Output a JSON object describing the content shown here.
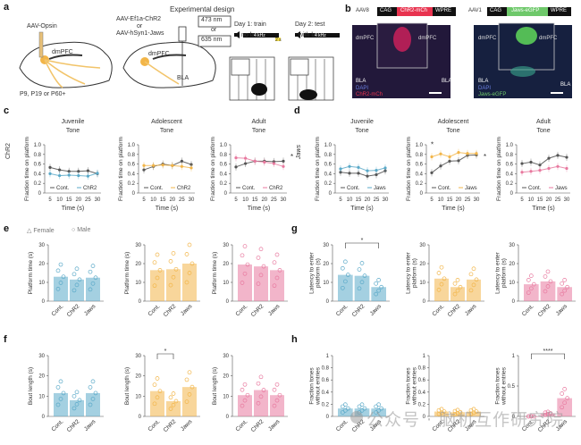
{
  "panel_labels": [
    "a",
    "b",
    "c",
    "d",
    "e",
    "f",
    "g",
    "h"
  ],
  "panel_a": {
    "title": "Experimental design",
    "injection_label": "AAV-Opsin",
    "region1": "dmPFC",
    "ages": "P9, P19 or P60+",
    "virus1": "AAV-Ef1a-ChR2",
    "or": "or",
    "virus2": "AAV-hSyn1-Jaws",
    "laser1": "473 nm",
    "laser2": "635 nm",
    "region2": "dmPFC",
    "region3": "BLA",
    "day1_title": "Day 1: train",
    "day1_sub": "no laser",
    "day2_title": "Day 2: test",
    "day2_sub": "with laser",
    "tone": "4 kHz",
    "shock": "2 s"
  },
  "panel_b": {
    "construct1": {
      "virus": "AAV8",
      "promoter": "CAG",
      "gene": "ChR2-mCh",
      "wpre": "WPRE"
    },
    "construct2": {
      "virus": "AAV1",
      "promoter": "CAG",
      "gene": "Jaws-eGFP",
      "wpre": "WPRE"
    },
    "left_labels": {
      "pfc_l": "dmPFC",
      "pfc_r": "dmPFC",
      "bla_l": "BLA",
      "bla_r": "BLA",
      "dapi": "DAPI",
      "marker": "ChR2-mCh"
    },
    "right_labels": {
      "pfc_l": "dmPFC",
      "pfc_r": "dmPFC",
      "bla_l": "BLA",
      "bla_r": "BLA",
      "dapi": "DAPI",
      "marker": "Jaws-eGFP"
    }
  },
  "colors": {
    "juvenile": "#5aa9c8",
    "adolescent": "#f2b548",
    "adult": "#e8799f",
    "control": "#555555",
    "chr2_title": "#333333"
  },
  "row_labels": {
    "c": "ChR2",
    "d": "Jaws"
  },
  "legend_e": {
    "female": "Female",
    "male": "Male"
  },
  "watermark": "公众号 · 脑机互作研究院",
  "chart_data": [
    {
      "id": "c1",
      "type": "line",
      "title": "Juvenile\nTone",
      "xlabel": "Time (s)",
      "ylabel": "Fraction time on platform",
      "x": [
        5,
        10,
        15,
        20,
        25,
        30
      ],
      "ylim": [
        0,
        1
      ],
      "yticks": [
        0,
        0.2,
        0.4,
        0.6,
        0.8,
        1.0
      ],
      "color": "juvenile",
      "series": [
        {
          "name": "Cont.",
          "values": [
            0.53,
            0.48,
            0.45,
            0.45,
            0.46,
            0.4
          ]
        },
        {
          "name": "ChR2",
          "values": [
            0.4,
            0.36,
            0.37,
            0.36,
            0.35,
            0.41
          ]
        }
      ],
      "sig": ""
    },
    {
      "id": "c2",
      "type": "line",
      "title": "Adolescent\nTone",
      "xlabel": "Time (s)",
      "ylabel": "Fraction time on platform",
      "x": [
        5,
        10,
        15,
        20,
        25,
        30
      ],
      "ylim": [
        0,
        1
      ],
      "yticks": [
        0,
        0.2,
        0.4,
        0.6,
        0.8,
        1.0
      ],
      "color": "adolescent",
      "series": [
        {
          "name": "Cont.",
          "values": [
            0.48,
            0.55,
            0.6,
            0.57,
            0.66,
            0.59
          ]
        },
        {
          "name": "ChR2",
          "values": [
            0.57,
            0.57,
            0.58,
            0.57,
            0.55,
            0.52
          ]
        }
      ],
      "sig": ""
    },
    {
      "id": "c3",
      "type": "line",
      "title": "Adult\nTone",
      "xlabel": "Time (s)",
      "ylabel": "Fraction time on platform",
      "x": [
        5,
        10,
        15,
        20,
        25,
        30
      ],
      "ylim": [
        0,
        1
      ],
      "yticks": [
        0,
        0.2,
        0.4,
        0.6,
        0.8,
        1.0
      ],
      "color": "adult",
      "series": [
        {
          "name": "Cont.",
          "values": [
            0.54,
            0.61,
            0.66,
            0.66,
            0.65,
            0.66
          ]
        },
        {
          "name": "ChR2",
          "values": [
            0.73,
            0.72,
            0.66,
            0.64,
            0.61,
            0.55
          ]
        }
      ],
      "sig": "*"
    },
    {
      "id": "d1",
      "type": "line",
      "title": "Juvenile\nTone",
      "xlabel": "Time (s)",
      "ylabel": "Fraction time on platform",
      "x": [
        5,
        10,
        15,
        20,
        25,
        30
      ],
      "ylim": [
        0,
        1
      ],
      "yticks": [
        0,
        0.2,
        0.4,
        0.6,
        0.8,
        1.0
      ],
      "color": "juvenile",
      "series": [
        {
          "name": "Cont.",
          "values": [
            0.43,
            0.41,
            0.41,
            0.35,
            0.38,
            0.46
          ]
        },
        {
          "name": "Jaws",
          "values": [
            0.5,
            0.55,
            0.53,
            0.46,
            0.47,
            0.52
          ]
        }
      ],
      "sig": ""
    },
    {
      "id": "d2",
      "type": "line",
      "title": "Adolescent\nTone",
      "xlabel": "Time (s)",
      "ylabel": "Fraction time on platform",
      "x": [
        5,
        10,
        15,
        20,
        25,
        30
      ],
      "ylim": [
        0,
        1
      ],
      "yticks": [
        0,
        0.2,
        0.4,
        0.6,
        0.8,
        1.0
      ],
      "color": "adolescent",
      "series": [
        {
          "name": "Cont.",
          "values": [
            0.42,
            0.56,
            0.66,
            0.67,
            0.78,
            0.79
          ]
        },
        {
          "name": "Jaws",
          "values": [
            0.75,
            0.81,
            0.75,
            0.84,
            0.82,
            0.82
          ]
        }
      ],
      "sig": "*",
      "sig_point": "*"
    },
    {
      "id": "d3",
      "type": "line",
      "title": "Adult\nTone",
      "xlabel": "Time (s)",
      "ylabel": "Fraction time on platform",
      "x": [
        5,
        10,
        15,
        20,
        25,
        30
      ],
      "ylim": [
        0,
        1
      ],
      "yticks": [
        0,
        0.2,
        0.4,
        0.6,
        0.8,
        1.0
      ],
      "color": "adult",
      "series": [
        {
          "name": "Cont.",
          "values": [
            0.61,
            0.64,
            0.58,
            0.72,
            0.78,
            0.74
          ]
        },
        {
          "name": "Jaws",
          "values": [
            0.43,
            0.45,
            0.47,
            0.51,
            0.55,
            0.51
          ]
        }
      ],
      "sig": ""
    },
    {
      "id": "e1",
      "type": "bar",
      "ylabel": "Platform time (s)",
      "categories": [
        "Cont.",
        "ChR2",
        "Jaws"
      ],
      "values": [
        13,
        11.5,
        12.5
      ],
      "ylim": [
        0,
        30
      ],
      "yticks": [
        0,
        10,
        20,
        30
      ],
      "color": "juvenile",
      "sig": null
    },
    {
      "id": "e2",
      "type": "bar",
      "ylabel": "Platform time (s)",
      "categories": [
        "Cont.",
        "ChR2",
        "Jaws"
      ],
      "values": [
        16.5,
        17,
        20
      ],
      "ylim": [
        0,
        30
      ],
      "yticks": [
        0,
        10,
        20,
        30
      ],
      "color": "adolescent",
      "sig": null
    },
    {
      "id": "e3",
      "type": "bar",
      "ylabel": "Platform time (s)",
      "categories": [
        "Cont.",
        "ChR2",
        "Jaws"
      ],
      "values": [
        19.5,
        18.5,
        16.5
      ],
      "ylim": [
        0,
        30
      ],
      "yticks": [
        0,
        10,
        20,
        30
      ],
      "color": "adult",
      "sig": null
    },
    {
      "id": "f1",
      "type": "bar",
      "ylabel": "Bout length (s)",
      "categories": [
        "Cont.",
        "ChR2",
        "Jaws"
      ],
      "values": [
        11.5,
        8,
        11.5
      ],
      "ylim": [
        0,
        30
      ],
      "yticks": [
        0,
        10,
        20,
        30
      ],
      "color": "juvenile",
      "sig": null
    },
    {
      "id": "f2",
      "type": "bar",
      "ylabel": "Bout length (s)",
      "categories": [
        "Cont.",
        "ChR2",
        "Jaws"
      ],
      "values": [
        12.5,
        7.5,
        14.5
      ],
      "ylim": [
        0,
        30
      ],
      "yticks": [
        0,
        10,
        20,
        30
      ],
      "color": "adolescent",
      "sig": {
        "from": 0,
        "to": 1,
        "label": "*"
      }
    },
    {
      "id": "f3",
      "type": "bar",
      "ylabel": "Bout length (s)",
      "categories": [
        "Cont.",
        "ChR2",
        "Jaws"
      ],
      "values": [
        10.5,
        13,
        10.5
      ],
      "ylim": [
        0,
        30
      ],
      "yticks": [
        0,
        10,
        20,
        30
      ],
      "color": "adult",
      "sig": null
    },
    {
      "id": "g1",
      "type": "bar",
      "ylabel": "Latency to enter\nplatform (s)",
      "categories": [
        "Cont.",
        "ChR2",
        "Jaws"
      ],
      "values": [
        14,
        13.5,
        7.5
      ],
      "ylim": [
        0,
        30
      ],
      "yticks": [
        0,
        10,
        20,
        30
      ],
      "color": "juvenile",
      "sig": {
        "from": 0,
        "to": 2,
        "label": "*"
      }
    },
    {
      "id": "g2",
      "type": "bar",
      "ylabel": "Latency to enter\nplatform (s)",
      "categories": [
        "Cont.",
        "ChR2",
        "Jaws"
      ],
      "values": [
        12,
        7.5,
        11.5
      ],
      "ylim": [
        0,
        30
      ],
      "yticks": [
        0,
        10,
        20,
        30
      ],
      "color": "adolescent",
      "sig": null
    },
    {
      "id": "g3",
      "type": "bar",
      "ylabel": "Latency to enter\nplatform (s)",
      "categories": [
        "Cont.",
        "ChR2",
        "Jaws"
      ],
      "values": [
        9,
        10.5,
        7.5
      ],
      "ylim": [
        0,
        30
      ],
      "yticks": [
        0,
        10,
        20,
        30
      ],
      "color": "adult",
      "sig": null
    },
    {
      "id": "h1",
      "type": "bar",
      "ylabel": "Fraction tones\nwithout entries",
      "categories": [
        "Cont.",
        "ChR2",
        "Jaws"
      ],
      "values": [
        0.13,
        0.13,
        0.13
      ],
      "ylim": [
        0,
        1
      ],
      "yticks": [
        0,
        0.2,
        0.4,
        0.6,
        0.8,
        1.0
      ],
      "color": "juvenile",
      "sig": null
    },
    {
      "id": "h2",
      "type": "bar",
      "ylabel": "Fraction tones\nwithout entries",
      "categories": [
        "Cont.",
        "ChR2",
        "Jaws"
      ],
      "values": [
        0.08,
        0.07,
        0.08
      ],
      "ylim": [
        0,
        1
      ],
      "yticks": [
        0,
        0.2,
        0.4,
        0.6,
        0.8,
        1.0
      ],
      "color": "adolescent",
      "sig": null
    },
    {
      "id": "h3",
      "type": "bar",
      "ylabel": "Fraction tones\nwithout entries",
      "categories": [
        "Cont.",
        "ChR2",
        "Jaws"
      ],
      "values": [
        0.0,
        0.05,
        0.3
      ],
      "ylim": [
        0,
        1
      ],
      "yticks": [
        0,
        0.5,
        1.0
      ],
      "color": "adult",
      "sig": {
        "from": 0,
        "to": 2,
        "label": "****"
      }
    }
  ]
}
